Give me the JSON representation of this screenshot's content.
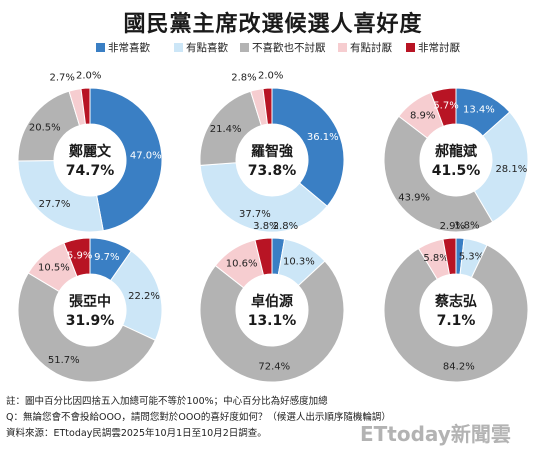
{
  "title": "國民黨主席改選候選人喜好度",
  "legend": [
    {
      "label": "非常喜歡",
      "color": "#3a7fc4"
    },
    {
      "label": "有點喜歡",
      "color": "#cce6f7"
    },
    {
      "label": "不喜歡也不討厭",
      "color": "#b3b3b3"
    },
    {
      "label": "有點討厭",
      "color": "#f6cdd0"
    },
    {
      "label": "非常討厭",
      "color": "#b81424"
    }
  ],
  "chart_data": [
    {
      "type": "pie",
      "name": "鄭麗文",
      "center_value": "74.7%",
      "categories": [
        "非常喜歡",
        "有點喜歡",
        "不喜歡也不討厭",
        "有點討厭",
        "非常討厭"
      ],
      "values": [
        47.0,
        27.7,
        20.5,
        2.7,
        2.0
      ],
      "labels": [
        "47.0%",
        "27.7%",
        "20.5%",
        "2.7%",
        "2.0%"
      ]
    },
    {
      "type": "pie",
      "name": "羅智強",
      "center_value": "73.8%",
      "categories": [
        "非常喜歡",
        "有點喜歡",
        "不喜歡也不討厭",
        "有點討厭",
        "非常討厭"
      ],
      "values": [
        36.1,
        37.7,
        21.4,
        2.8,
        2.0
      ],
      "labels": [
        "36.1%",
        "37.7%",
        "21.4%",
        "2.8%",
        "2.0%"
      ]
    },
    {
      "type": "pie",
      "name": "郝龍斌",
      "center_value": "41.5%",
      "categories": [
        "非常喜歡",
        "有點喜歡",
        "不喜歡也不討厭",
        "有點討厭",
        "非常討厭"
      ],
      "values": [
        13.4,
        28.1,
        43.9,
        8.9,
        5.7
      ],
      "labels": [
        "13.4%",
        "28.1%",
        "43.9%",
        "8.9%",
        "5.7%"
      ]
    },
    {
      "type": "pie",
      "name": "張亞中",
      "center_value": "31.9%",
      "categories": [
        "非常喜歡",
        "有點喜歡",
        "不喜歡也不討厭",
        "有點討厭",
        "非常討厭"
      ],
      "values": [
        9.7,
        22.2,
        51.7,
        10.5,
        5.9
      ],
      "labels": [
        "9.7%",
        "22.2%",
        "51.7%",
        "10.5%",
        "5.9%"
      ]
    },
    {
      "type": "pie",
      "name": "卓伯源",
      "center_value": "13.1%",
      "categories": [
        "非常喜歡",
        "有點喜歡",
        "不喜歡也不討厭",
        "有點討厭",
        "非常討厭"
      ],
      "values": [
        2.8,
        10.3,
        72.4,
        10.6,
        3.8
      ],
      "labels": [
        "2.8%",
        "10.3%",
        "72.4%",
        "10.6%",
        "3.8%"
      ]
    },
    {
      "type": "pie",
      "name": "蔡志弘",
      "center_value": "7.1%",
      "categories": [
        "非常喜歡",
        "有點喜歡",
        "不喜歡也不討厭",
        "有點討厭",
        "非常討厭"
      ],
      "values": [
        1.8,
        5.3,
        84.2,
        5.8,
        2.9
      ],
      "labels": [
        "1.8%",
        "5.3%",
        "84.2%",
        "5.8%",
        "2.9%"
      ]
    }
  ],
  "notes": [
    "註：圖中百分比因四捨五入加總可能不等於100%；中心百分比為好感度加總",
    "Q：無論您會不會投給OOO，請問您對於OOO的喜好度如何？（候選人出示順序隨機輪調）",
    "資料來源：ETtoday民調雲2025年10月1日至10月2日調查。"
  ],
  "watermark": "ETtoday新聞雲"
}
